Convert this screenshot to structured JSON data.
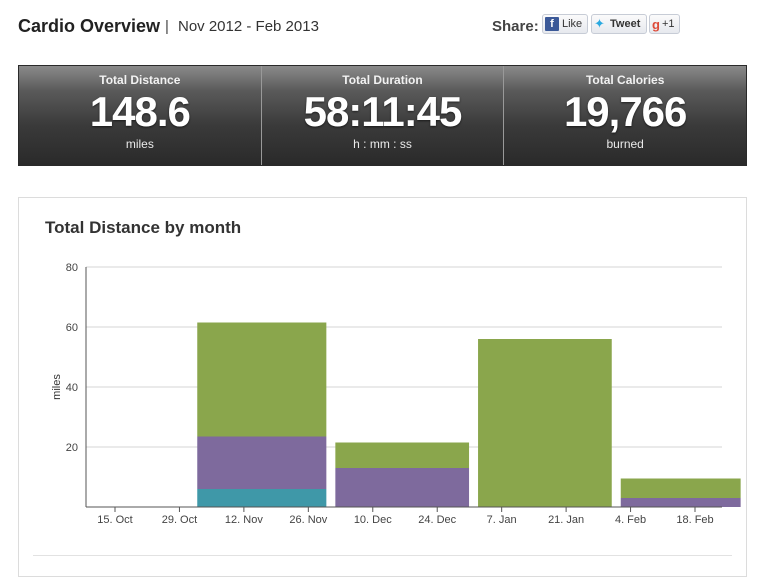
{
  "header": {
    "title": "Cardio Overview",
    "separator": "|",
    "date_range": "Nov 2012 - Feb 2013",
    "share_label": "Share:",
    "like_label": "Like",
    "tweet_label": "Tweet",
    "plusone_label": "+1",
    "fb_glyph": "f",
    "gplus_glyph": "g"
  },
  "stats": [
    {
      "label": "Total Distance",
      "value": "148.6",
      "unit": "miles"
    },
    {
      "label": "Total Duration",
      "value": "58:11:45",
      "unit": "h : mm : ss"
    },
    {
      "label": "Total Calories",
      "value": "19,766",
      "unit": "burned"
    }
  ],
  "colors": {
    "green": "#8aa64c",
    "purple": "#7e6a9d",
    "teal": "#3f98a8",
    "grid": "#d4d4d4",
    "axis": "#555555"
  },
  "chart_data": {
    "type": "bar",
    "title": "Total Distance by month",
    "ylabel": "miles",
    "xlabel": "",
    "ylim": [
      0,
      80
    ],
    "yticks": [
      20,
      40,
      60,
      80
    ],
    "grid": true,
    "stacked": true,
    "x_ticks": [
      "15. Oct",
      "29. Oct",
      "12. Nov",
      "26. Nov",
      "10. Dec",
      "24. Dec",
      "7. Jan",
      "21. Jan",
      "4. Feb",
      "18. Feb"
    ],
    "x_tick_dates": [
      "2012-10-15",
      "2012-10-29",
      "2012-11-12",
      "2012-11-26",
      "2012-12-10",
      "2012-12-24",
      "2013-01-07",
      "2013-01-21",
      "2013-02-04",
      "2013-02-18"
    ],
    "months": [
      "2012-11",
      "2012-12",
      "2013-01",
      "2013-02"
    ],
    "series": [
      {
        "color": "#3f98a8",
        "values": [
          6,
          0,
          0,
          0
        ]
      },
      {
        "color": "#7e6a9d",
        "values": [
          17.5,
          13,
          0,
          3
        ]
      },
      {
        "color": "#8aa64c",
        "values": [
          38,
          8.5,
          56,
          6.5
        ]
      }
    ]
  }
}
